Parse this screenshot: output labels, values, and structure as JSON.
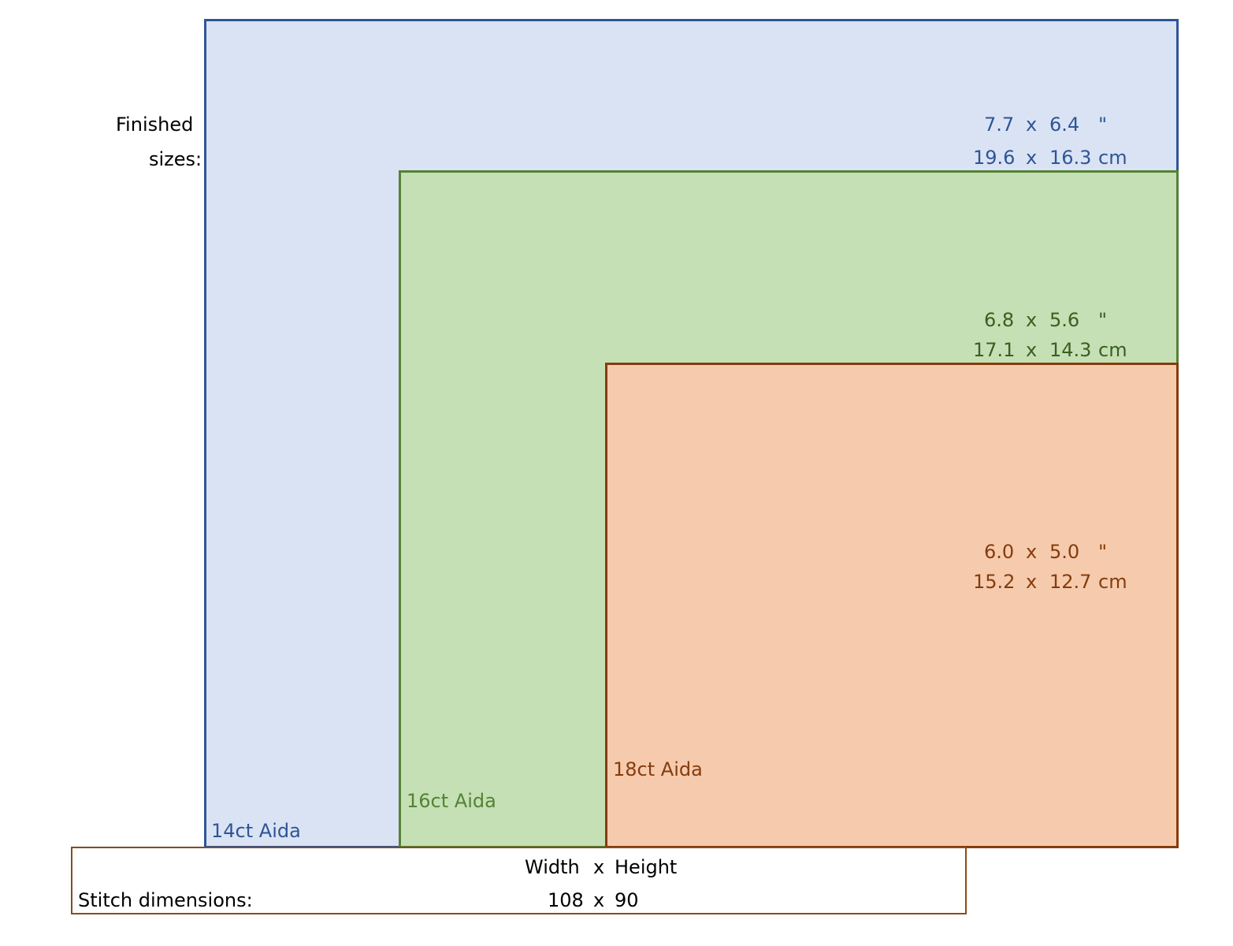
{
  "finished_label_line1": "Finished",
  "finished_label_line2": "sizes:",
  "sizes": [
    {
      "fabric": "14ct Aida",
      "inches": {
        "w": "7.7",
        "x": "x",
        "h": "6.4",
        "unit": "\""
      },
      "cm": {
        "w": "19.6",
        "x": "x",
        "h": "16.3",
        "unit": "cm"
      },
      "color": "#2f5597"
    },
    {
      "fabric": "16ct Aida",
      "inches": {
        "w": "6.8",
        "x": "x",
        "h": "5.6",
        "unit": "\""
      },
      "cm": {
        "w": "17.1",
        "x": "x",
        "h": "14.3",
        "unit": "cm"
      },
      "color": "#548235"
    },
    {
      "fabric": "18ct Aida",
      "inches": {
        "w": "6.0",
        "x": "x",
        "h": "5.0",
        "unit": "\""
      },
      "cm": {
        "w": "15.2",
        "x": "x",
        "h": "12.7",
        "unit": "cm"
      },
      "color": "#843c0c"
    }
  ],
  "stitch": {
    "label": "Stitch dimensions:",
    "header_w": "Width",
    "header_x": "x",
    "header_h": "Height",
    "w": "108",
    "x": "x",
    "h": "90"
  }
}
